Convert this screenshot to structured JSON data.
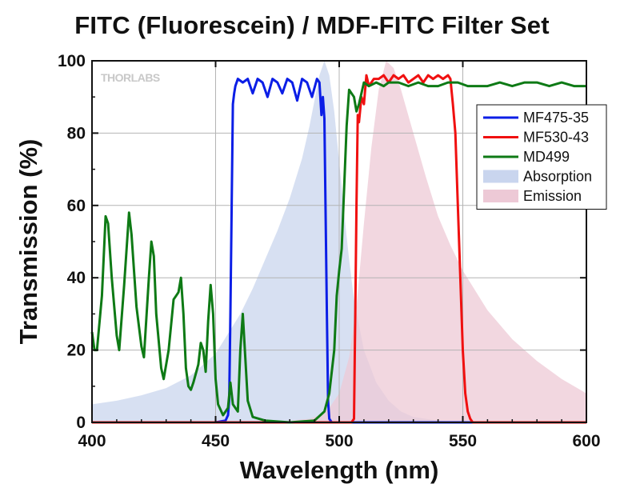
{
  "chart_data": {
    "type": "line",
    "title": "FITC (Fluorescein) / MDF-FITC Filter Set",
    "xlabel": "Wavelength (nm)",
    "ylabel": "Transmission (%)",
    "xlim": [
      400,
      600
    ],
    "ylim": [
      0,
      100
    ],
    "x_ticks": [
      400,
      450,
      500,
      550,
      600
    ],
    "y_ticks": [
      0,
      20,
      40,
      60,
      80,
      100
    ],
    "grid": true,
    "legend_position": "right",
    "watermark": "THORLABS",
    "series": [
      {
        "name": "Absorption",
        "kind": "area",
        "color": "#c9d5ee",
        "points": [
          [
            400,
            5
          ],
          [
            410,
            6
          ],
          [
            420,
            7.5
          ],
          [
            430,
            9.5
          ],
          [
            440,
            13
          ],
          [
            450,
            19
          ],
          [
            460,
            30
          ],
          [
            465,
            37
          ],
          [
            470,
            45
          ],
          [
            475,
            53
          ],
          [
            480,
            62
          ],
          [
            485,
            73
          ],
          [
            488,
            82
          ],
          [
            490,
            89
          ],
          [
            492,
            96
          ],
          [
            494,
            100
          ],
          [
            496,
            96
          ],
          [
            498,
            86
          ],
          [
            500,
            72
          ],
          [
            502,
            58
          ],
          [
            504,
            45
          ],
          [
            506,
            34
          ],
          [
            510,
            20
          ],
          [
            515,
            11
          ],
          [
            520,
            6
          ],
          [
            525,
            3
          ],
          [
            530,
            1.5
          ],
          [
            540,
            0.5
          ],
          [
            550,
            0
          ],
          [
            600,
            0
          ]
        ]
      },
      {
        "name": "Emission",
        "kind": "area",
        "color": "#edc9d6",
        "points": [
          [
            470,
            0
          ],
          [
            480,
            0.5
          ],
          [
            488,
            1
          ],
          [
            492,
            2
          ],
          [
            496,
            4
          ],
          [
            500,
            8
          ],
          [
            504,
            18
          ],
          [
            507,
            32
          ],
          [
            510,
            55
          ],
          [
            513,
            76
          ],
          [
            516,
            92
          ],
          [
            519,
            100
          ],
          [
            522,
            98
          ],
          [
            525,
            92
          ],
          [
            530,
            80
          ],
          [
            535,
            68
          ],
          [
            540,
            57
          ],
          [
            545,
            49
          ],
          [
            550,
            42
          ],
          [
            560,
            31
          ],
          [
            570,
            23
          ],
          [
            580,
            17
          ],
          [
            590,
            12
          ],
          [
            600,
            8
          ]
        ]
      },
      {
        "name": "MF475-35",
        "kind": "line",
        "color": "#0b1ee6",
        "points": [
          [
            400,
            0
          ],
          [
            450,
            0
          ],
          [
            454,
            0.5
          ],
          [
            455,
            2
          ],
          [
            455.5,
            6
          ],
          [
            456,
            30
          ],
          [
            456.5,
            60
          ],
          [
            457,
            88
          ],
          [
            457.5,
            91
          ],
          [
            458,
            93
          ],
          [
            459,
            95
          ],
          [
            461,
            94
          ],
          [
            463,
            95
          ],
          [
            465,
            91
          ],
          [
            467,
            95
          ],
          [
            469,
            94
          ],
          [
            471,
            90
          ],
          [
            473,
            95
          ],
          [
            475,
            94
          ],
          [
            477,
            91
          ],
          [
            479,
            95
          ],
          [
            481,
            94
          ],
          [
            483,
            89
          ],
          [
            485,
            95
          ],
          [
            487,
            94
          ],
          [
            489,
            90
          ],
          [
            491,
            95
          ],
          [
            492,
            94
          ],
          [
            492.8,
            85
          ],
          [
            493.4,
            90
          ],
          [
            494,
            84
          ],
          [
            495,
            30
          ],
          [
            495.5,
            6
          ],
          [
            496,
            1
          ],
          [
            497,
            0
          ],
          [
            600,
            0
          ]
        ]
      },
      {
        "name": "MF530-43",
        "kind": "line",
        "color": "#f01010",
        "points": [
          [
            400,
            0
          ],
          [
            505,
            0
          ],
          [
            506,
            1
          ],
          [
            506.5,
            30
          ],
          [
            507,
            60
          ],
          [
            507.5,
            85
          ],
          [
            508,
            83
          ],
          [
            509,
            90
          ],
          [
            510,
            88
          ],
          [
            511,
            96
          ],
          [
            512,
            93
          ],
          [
            514,
            95
          ],
          [
            516,
            95
          ],
          [
            518,
            96
          ],
          [
            520,
            94
          ],
          [
            522,
            96
          ],
          [
            524,
            95
          ],
          [
            526,
            96
          ],
          [
            528,
            94
          ],
          [
            530,
            95
          ],
          [
            532,
            96
          ],
          [
            534,
            94
          ],
          [
            536,
            96
          ],
          [
            538,
            95
          ],
          [
            540,
            96
          ],
          [
            542,
            95
          ],
          [
            544,
            96
          ],
          [
            545,
            95
          ],
          [
            546,
            88
          ],
          [
            547,
            80
          ],
          [
            548,
            60
          ],
          [
            549,
            40
          ],
          [
            550,
            20
          ],
          [
            551,
            8
          ],
          [
            552,
            3
          ],
          [
            553,
            1
          ],
          [
            554,
            0
          ],
          [
            600,
            0
          ]
        ]
      },
      {
        "name": "MD499",
        "kind": "line",
        "color": "#0e7a15",
        "points": [
          [
            400,
            25
          ],
          [
            401,
            20
          ],
          [
            402,
            20
          ],
          [
            404,
            35
          ],
          [
            405.5,
            57
          ],
          [
            406.5,
            55
          ],
          [
            408,
            40
          ],
          [
            410,
            24
          ],
          [
            411,
            20
          ],
          [
            413,
            38
          ],
          [
            415,
            58
          ],
          [
            416,
            52
          ],
          [
            418,
            32
          ],
          [
            420,
            21
          ],
          [
            421,
            18
          ],
          [
            423,
            40
          ],
          [
            424,
            50
          ],
          [
            425,
            46
          ],
          [
            426,
            30
          ],
          [
            428,
            15
          ],
          [
            429,
            12
          ],
          [
            431,
            20
          ],
          [
            433,
            34
          ],
          [
            434,
            35
          ],
          [
            435,
            36
          ],
          [
            436,
            40
          ],
          [
            437,
            30
          ],
          [
            438,
            15
          ],
          [
            439,
            10
          ],
          [
            440,
            9
          ],
          [
            441,
            11
          ],
          [
            443,
            16
          ],
          [
            444,
            22
          ],
          [
            445,
            20
          ],
          [
            446,
            14
          ],
          [
            447,
            28
          ],
          [
            448,
            38
          ],
          [
            449,
            30
          ],
          [
            450,
            12
          ],
          [
            451,
            5
          ],
          [
            453,
            2
          ],
          [
            455,
            4
          ],
          [
            456,
            11
          ],
          [
            457,
            5
          ],
          [
            459,
            3
          ],
          [
            460,
            20
          ],
          [
            461,
            30
          ],
          [
            462,
            18
          ],
          [
            463,
            6
          ],
          [
            465,
            1.5
          ],
          [
            470,
            0.5
          ],
          [
            480,
            0
          ],
          [
            490,
            0.5
          ],
          [
            494,
            3
          ],
          [
            496,
            8
          ],
          [
            498,
            20
          ],
          [
            499,
            35
          ],
          [
            500,
            42
          ],
          [
            501,
            48
          ],
          [
            502,
            65
          ],
          [
            503,
            82
          ],
          [
            504,
            92
          ],
          [
            505,
            91
          ],
          [
            506,
            90
          ],
          [
            507,
            86
          ],
          [
            508,
            88
          ],
          [
            510,
            94
          ],
          [
            512,
            93
          ],
          [
            515,
            94
          ],
          [
            518,
            93
          ],
          [
            520,
            94
          ],
          [
            524,
            94
          ],
          [
            528,
            93
          ],
          [
            532,
            94
          ],
          [
            536,
            93
          ],
          [
            540,
            93
          ],
          [
            544,
            94
          ],
          [
            548,
            94
          ],
          [
            552,
            93
          ],
          [
            556,
            93
          ],
          [
            560,
            93
          ],
          [
            565,
            94
          ],
          [
            570,
            93
          ],
          [
            575,
            94
          ],
          [
            580,
            94
          ],
          [
            585,
            93
          ],
          [
            590,
            94
          ],
          [
            595,
            93
          ],
          [
            600,
            93
          ]
        ]
      }
    ],
    "legend": [
      "MF475-35",
      "MF530-43",
      "MD499",
      "Absorption",
      "Emission"
    ]
  }
}
